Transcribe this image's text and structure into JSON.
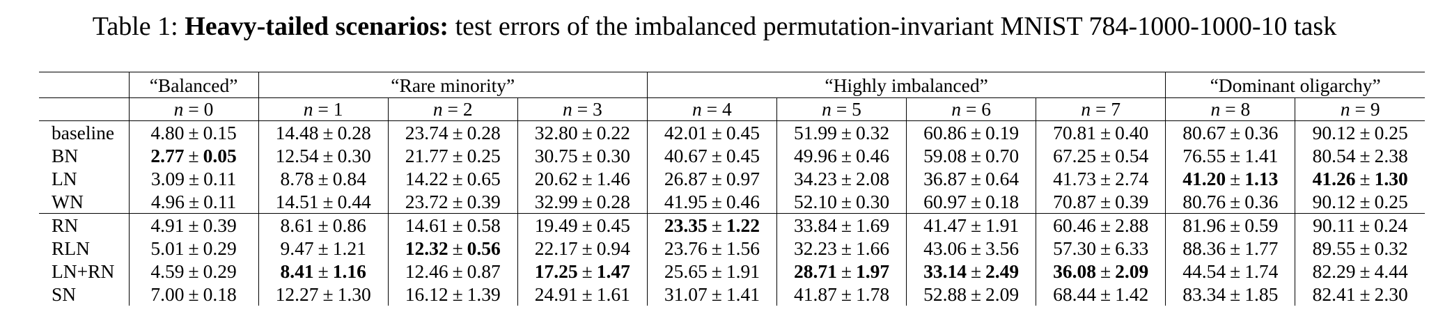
{
  "caption": {
    "prefix": "Table 1: ",
    "bold": "Heavy-tailed scenarios:",
    "rest": " test errors of the imbalanced permutation-invariant MNIST 784-1000-1000-10 task"
  },
  "groups": [
    {
      "label": "“Balanced”",
      "span": 1
    },
    {
      "label": "“Rare minority”",
      "span": 3
    },
    {
      "label": "“Highly imbalanced”",
      "span": 4
    },
    {
      "label": "“Dominant oligarchy”",
      "span": 2
    }
  ],
  "n_label": "n",
  "n_values": [
    "0",
    "1",
    "2",
    "3",
    "4",
    "5",
    "6",
    "7",
    "8",
    "9"
  ],
  "pm": "±",
  "rows": [
    {
      "method": "baseline",
      "cells": [
        {
          "m": "4.80",
          "s": "0.15"
        },
        {
          "m": "14.48",
          "s": "0.28"
        },
        {
          "m": "23.74",
          "s": "0.28"
        },
        {
          "m": "32.80",
          "s": "0.22"
        },
        {
          "m": "42.01",
          "s": "0.45"
        },
        {
          "m": "51.99",
          "s": "0.32"
        },
        {
          "m": "60.86",
          "s": "0.19"
        },
        {
          "m": "70.81",
          "s": "0.40"
        },
        {
          "m": "80.67",
          "s": "0.36"
        },
        {
          "m": "90.12",
          "s": "0.25"
        }
      ]
    },
    {
      "method": "BN",
      "cells": [
        {
          "m": "2.77",
          "s": "0.05",
          "bold": true
        },
        {
          "m": "12.54",
          "s": "0.30"
        },
        {
          "m": "21.77",
          "s": "0.25"
        },
        {
          "m": "30.75",
          "s": "0.30"
        },
        {
          "m": "40.67",
          "s": "0.45"
        },
        {
          "m": "49.96",
          "s": "0.46"
        },
        {
          "m": "59.08",
          "s": "0.70"
        },
        {
          "m": "67.25",
          "s": "0.54"
        },
        {
          "m": "76.55",
          "s": "1.41"
        },
        {
          "m": "80.54",
          "s": "2.38"
        }
      ]
    },
    {
      "method": "LN",
      "cells": [
        {
          "m": "3.09",
          "s": "0.11"
        },
        {
          "m": "8.78",
          "s": "0.84"
        },
        {
          "m": "14.22",
          "s": "0.65"
        },
        {
          "m": "20.62",
          "s": "1.46"
        },
        {
          "m": "26.87",
          "s": "0.97"
        },
        {
          "m": "34.23",
          "s": "2.08"
        },
        {
          "m": "36.87",
          "s": "0.64"
        },
        {
          "m": "41.73",
          "s": "2.74"
        },
        {
          "m": "41.20",
          "s": "1.13",
          "bold": true
        },
        {
          "m": "41.26",
          "s": "1.30",
          "bold": true
        }
      ]
    },
    {
      "method": "WN",
      "cells": [
        {
          "m": "4.96",
          "s": "0.11"
        },
        {
          "m": "14.51",
          "s": "0.44"
        },
        {
          "m": "23.72",
          "s": "0.39"
        },
        {
          "m": "32.99",
          "s": "0.28"
        },
        {
          "m": "41.95",
          "s": "0.46"
        },
        {
          "m": "52.10",
          "s": "0.30"
        },
        {
          "m": "60.97",
          "s": "0.18"
        },
        {
          "m": "70.87",
          "s": "0.39"
        },
        {
          "m": "80.76",
          "s": "0.36"
        },
        {
          "m": "90.12",
          "s": "0.25"
        }
      ]
    },
    {
      "method": "RN",
      "sep": true,
      "cells": [
        {
          "m": "4.91",
          "s": "0.39"
        },
        {
          "m": "8.61",
          "s": "0.86"
        },
        {
          "m": "14.61",
          "s": "0.58"
        },
        {
          "m": "19.49",
          "s": "0.45"
        },
        {
          "m": "23.35",
          "s": "1.22",
          "bold": true
        },
        {
          "m": "33.84",
          "s": "1.69"
        },
        {
          "m": "41.47",
          "s": "1.91"
        },
        {
          "m": "60.46",
          "s": "2.88"
        },
        {
          "m": "81.96",
          "s": "0.59"
        },
        {
          "m": "90.11",
          "s": "0.24"
        }
      ]
    },
    {
      "method": "RLN",
      "cells": [
        {
          "m": "5.01",
          "s": "0.29"
        },
        {
          "m": "9.47",
          "s": "1.21"
        },
        {
          "m": "12.32",
          "s": "0.56",
          "bold": true
        },
        {
          "m": "22.17",
          "s": "0.94"
        },
        {
          "m": "23.76",
          "s": "1.56"
        },
        {
          "m": "32.23",
          "s": "1.66"
        },
        {
          "m": "43.06",
          "s": "3.56"
        },
        {
          "m": "57.30",
          "s": "6.33"
        },
        {
          "m": "88.36",
          "s": "1.77"
        },
        {
          "m": "89.55",
          "s": "0.32"
        }
      ]
    },
    {
      "method": "LN+RN",
      "cells": [
        {
          "m": "4.59",
          "s": "0.29"
        },
        {
          "m": "8.41",
          "s": "1.16",
          "bold": true
        },
        {
          "m": "12.46",
          "s": "0.87"
        },
        {
          "m": "17.25",
          "s": "1.47",
          "bold": true
        },
        {
          "m": "25.65",
          "s": "1.91"
        },
        {
          "m": "28.71",
          "s": "1.97",
          "bold": true
        },
        {
          "m": "33.14",
          "s": "2.49",
          "bold": true
        },
        {
          "m": "36.08",
          "s": "2.09",
          "bold": true
        },
        {
          "m": "44.54",
          "s": "1.74"
        },
        {
          "m": "82.29",
          "s": "4.44"
        }
      ]
    },
    {
      "method": "SN",
      "cells": [
        {
          "m": "7.00",
          "s": "0.18"
        },
        {
          "m": "12.27",
          "s": "1.30"
        },
        {
          "m": "16.12",
          "s": "1.39"
        },
        {
          "m": "24.91",
          "s": "1.61"
        },
        {
          "m": "31.07",
          "s": "1.41"
        },
        {
          "m": "41.87",
          "s": "1.78"
        },
        {
          "m": "52.88",
          "s": "2.09"
        },
        {
          "m": "68.44",
          "s": "1.42"
        },
        {
          "m": "83.34",
          "s": "1.85"
        },
        {
          "m": "82.41",
          "s": "2.30"
        }
      ]
    }
  ]
}
